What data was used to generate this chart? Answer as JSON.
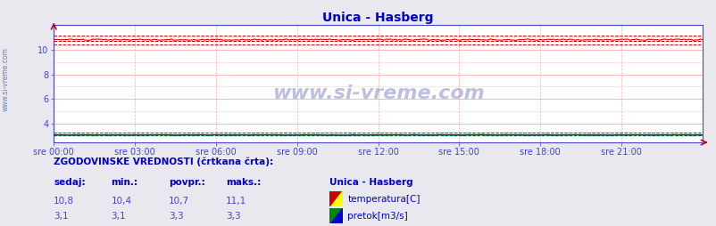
{
  "title": "Unica - Hasberg",
  "title_color": "#0000cc",
  "bg_color": "#e8e8ee",
  "plot_bg_color": "#ffffff",
  "watermark": "www.si-vreme.com",
  "x_labels": [
    "sre 00:00",
    "sre 03:00",
    "sre 06:00",
    "sre 09:00",
    "sre 12:00",
    "sre 15:00",
    "sre 18:00",
    "sre 21:00"
  ],
  "ylim": [
    2.5,
    12.0
  ],
  "yticks": [
    4,
    6,
    8,
    10
  ],
  "temp_value": "10,8",
  "temp_min": "10,4",
  "temp_avg": "10,7",
  "temp_max": "11,1",
  "flow_value": "3,1",
  "flow_min": "3,1",
  "flow_avg": "3,3",
  "flow_max": "3,3",
  "temp_solid_val": 10.8,
  "temp_min_val": 10.4,
  "temp_avg_val": 10.7,
  "temp_max_val": 11.1,
  "flow_solid_val": 3.1,
  "flow_min_val": 3.1,
  "flow_avg_val": 3.3,
  "flow_max_val": 3.3,
  "level_val": 3.1,
  "temp_color": "#cc0000",
  "flow_color": "#008800",
  "level_color": "#0000cc",
  "grid_h_color": "#ffaaaa",
  "grid_v_color": "#ffaaaa",
  "spine_color": "#4444cc",
  "tick_color": "#4444cc",
  "label_color": "#4444cc",
  "title_fontsize": 10,
  "tick_fontsize": 7,
  "table_header_color": "#0000cc",
  "table_value_color": "#4444cc",
  "legend_title": "Unica - Hasberg",
  "legend_temp_label": "temperatura[C]",
  "legend_flow_label": "pretok[m3/s]",
  "hist_label": "ZGODOVINSKE VREDNOSTI (črtkana črta):",
  "col_sedaj": "sedaj:",
  "col_min": "min.:",
  "col_povpr": "povpr.:",
  "col_maks": "maks.:"
}
